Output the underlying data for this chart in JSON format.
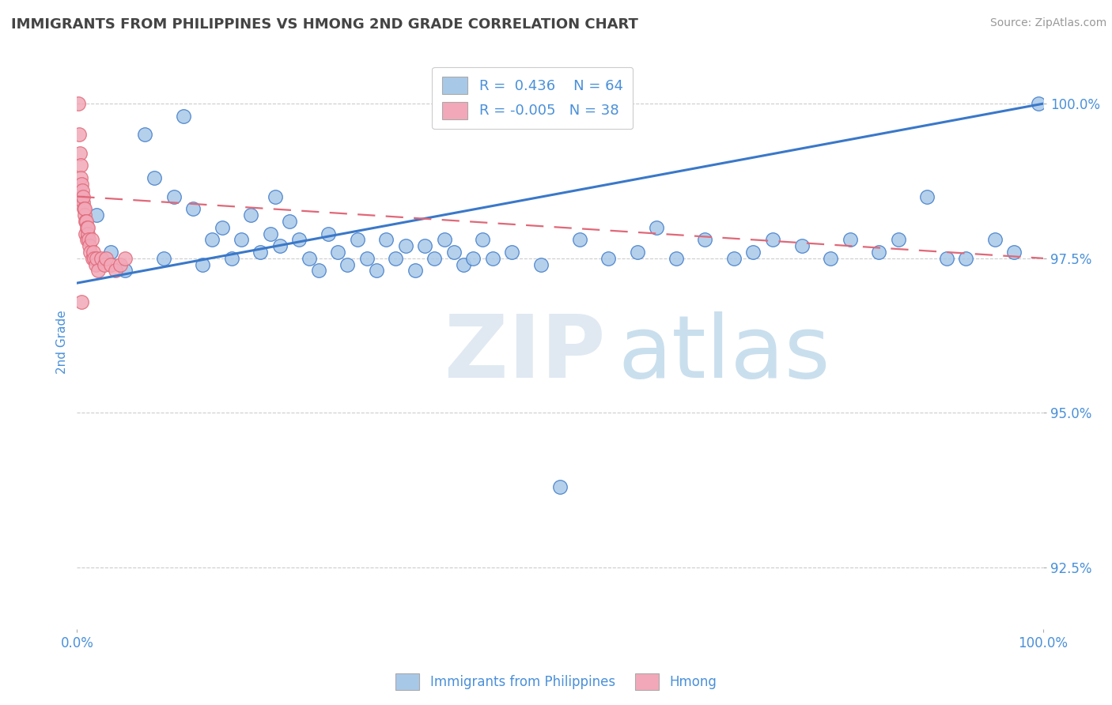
{
  "title": "IMMIGRANTS FROM PHILIPPINES VS HMONG 2ND GRADE CORRELATION CHART",
  "source": "Source: ZipAtlas.com",
  "ylabel": "2nd Grade",
  "xlim": [
    0.0,
    100.0
  ],
  "ylim": [
    91.5,
    100.8
  ],
  "yticks": [
    92.5,
    95.0,
    97.5,
    100.0
  ],
  "ytick_labels": [
    "92.5%",
    "95.0%",
    "97.5%",
    "100.0%"
  ],
  "xtick_labels": [
    "0.0%",
    "100.0%"
  ],
  "legend_r1": "R =  0.436",
  "legend_n1": "N = 64",
  "legend_r2": "R = -0.005",
  "legend_n2": "N = 38",
  "blue_color": "#a8c8e8",
  "pink_color": "#f2a8b8",
  "line_blue": "#3a78c9",
  "line_pink": "#e06878",
  "text_color": "#4a90d9",
  "title_color": "#444444",
  "philippines_x": [
    2.0,
    3.5,
    5.0,
    7.0,
    8.0,
    9.0,
    10.0,
    11.0,
    12.0,
    13.0,
    14.0,
    15.0,
    16.0,
    17.0,
    18.0,
    19.0,
    20.0,
    20.5,
    21.0,
    22.0,
    23.0,
    24.0,
    25.0,
    26.0,
    27.0,
    28.0,
    29.0,
    30.0,
    31.0,
    32.0,
    33.0,
    34.0,
    35.0,
    36.0,
    37.0,
    38.0,
    39.0,
    40.0,
    41.0,
    42.0,
    43.0,
    45.0,
    48.0,
    50.0,
    52.0,
    55.0,
    58.0,
    60.0,
    62.0,
    65.0,
    68.0,
    70.0,
    72.0,
    75.0,
    78.0,
    80.0,
    83.0,
    85.0,
    88.0,
    90.0,
    92.0,
    95.0,
    97.0,
    99.5
  ],
  "philippines_y": [
    98.2,
    97.6,
    97.3,
    99.5,
    98.8,
    97.5,
    98.5,
    99.8,
    98.3,
    97.4,
    97.8,
    98.0,
    97.5,
    97.8,
    98.2,
    97.6,
    97.9,
    98.5,
    97.7,
    98.1,
    97.8,
    97.5,
    97.3,
    97.9,
    97.6,
    97.4,
    97.8,
    97.5,
    97.3,
    97.8,
    97.5,
    97.7,
    97.3,
    97.7,
    97.5,
    97.8,
    97.6,
    97.4,
    97.5,
    97.8,
    97.5,
    97.6,
    97.4,
    93.8,
    97.8,
    97.5,
    97.6,
    98.0,
    97.5,
    97.8,
    97.5,
    97.6,
    97.8,
    97.7,
    97.5,
    97.8,
    97.6,
    97.8,
    98.5,
    97.5,
    97.5,
    97.8,
    97.6,
    100.0
  ],
  "hmong_x": [
    0.15,
    0.25,
    0.3,
    0.35,
    0.4,
    0.45,
    0.5,
    0.55,
    0.6,
    0.65,
    0.7,
    0.75,
    0.8,
    0.85,
    0.9,
    0.95,
    1.0,
    1.05,
    1.1,
    1.15,
    1.2,
    1.3,
    1.4,
    1.5,
    1.6,
    1.7,
    1.8,
    1.9,
    2.0,
    2.2,
    2.5,
    2.8,
    3.0,
    3.5,
    4.0,
    4.5,
    5.0,
    0.5
  ],
  "hmong_y": [
    100.0,
    99.5,
    99.2,
    99.0,
    98.8,
    98.7,
    98.5,
    98.6,
    98.4,
    98.5,
    98.3,
    98.2,
    98.3,
    98.1,
    97.9,
    98.1,
    98.0,
    97.8,
    97.9,
    98.0,
    97.8,
    97.7,
    97.6,
    97.8,
    97.5,
    97.6,
    97.5,
    97.4,
    97.5,
    97.3,
    97.5,
    97.4,
    97.5,
    97.4,
    97.3,
    97.4,
    97.5,
    96.8
  ],
  "blue_line_x": [
    0.0,
    100.0
  ],
  "blue_line_y": [
    97.1,
    100.0
  ],
  "pink_line_x": [
    0.0,
    100.0
  ],
  "pink_line_y": [
    98.5,
    97.5
  ]
}
